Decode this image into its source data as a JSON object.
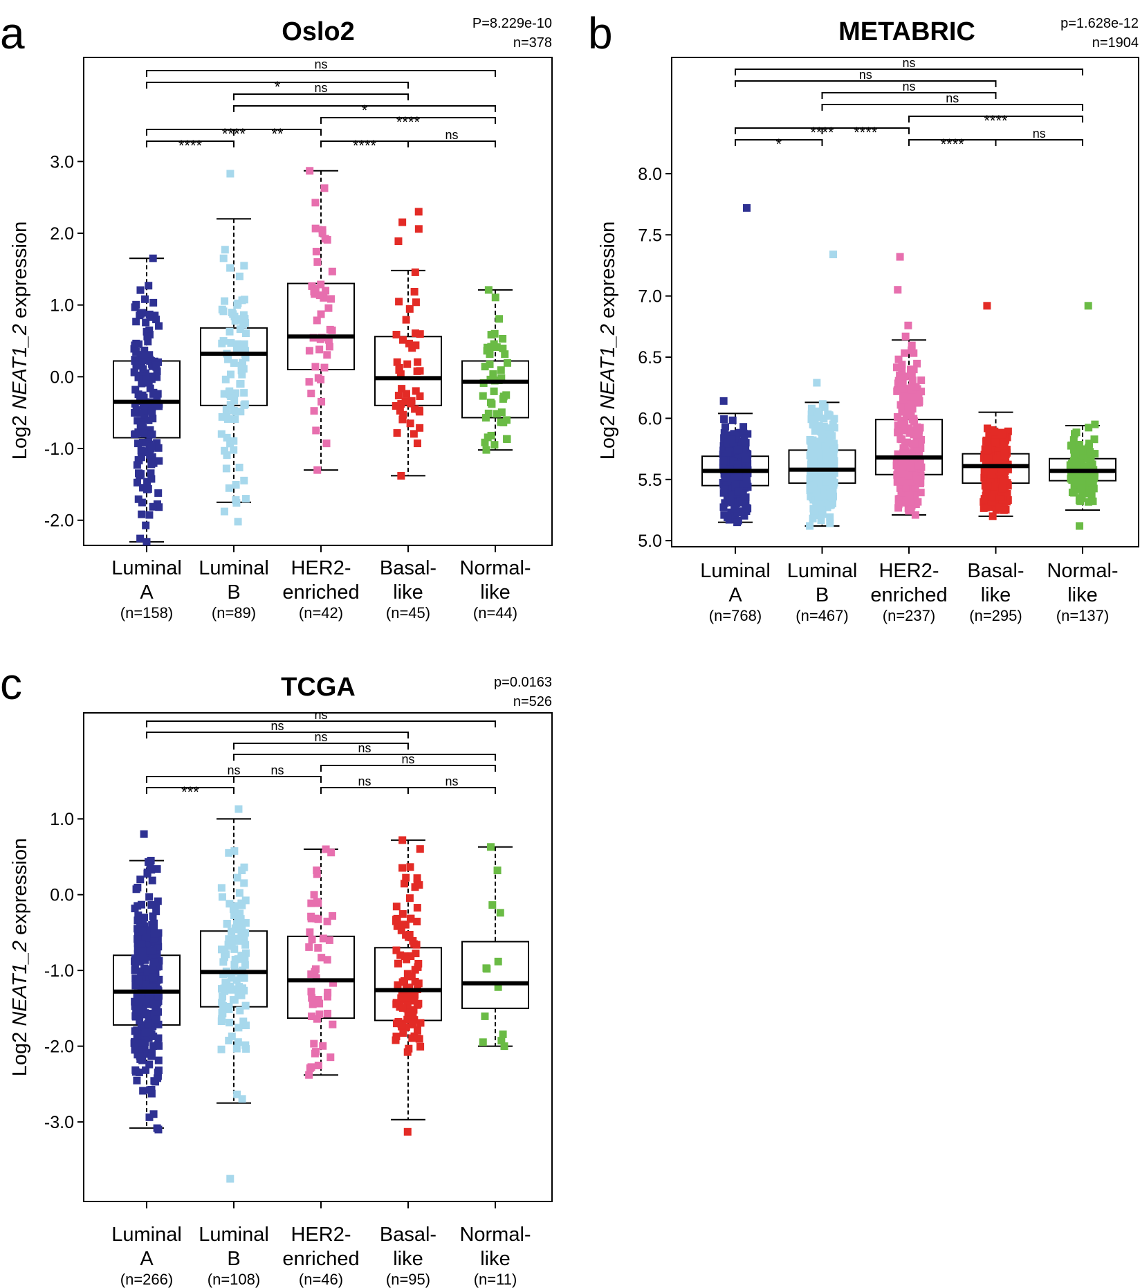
{
  "chart_data": [
    {
      "type": "boxplot",
      "panel_letter": "a",
      "title": "Oslo2",
      "stat_label": "P=8.229e-10",
      "n_label": "n=378",
      "ylabel": "Log2 NEAT1_2 expression",
      "ylabel_parts": [
        "Log2 ",
        "NEAT1_2",
        " expression"
      ],
      "ylim": [
        -2.35,
        4.45
      ],
      "yticks": [
        -2.0,
        -1.0,
        0.0,
        1.0,
        2.0,
        3.0
      ],
      "ytick_labels": [
        "-2.0",
        "-1.0",
        "0.0",
        "1.0",
        "2.0",
        "3.0"
      ],
      "groups": [
        {
          "name_line1": "Luminal",
          "name_line2": "A",
          "n": "(n=158)",
          "color": "#2e3192",
          "q1": -0.85,
          "median": -0.35,
          "q3": 0.22,
          "whisker_low": -2.3,
          "whisker_high": 1.65,
          "points": {
            "count": 158,
            "min": -2.3,
            "max": 1.65
          }
        },
        {
          "name_line1": "Luminal",
          "name_line2": "B",
          "n": "(n=89)",
          "color": "#a7d8ec",
          "q1": -0.4,
          "median": 0.32,
          "q3": 0.68,
          "whisker_low": -1.75,
          "whisker_high": 2.2,
          "points": {
            "count": 89,
            "min": -2.02,
            "max": 2.83
          }
        },
        {
          "name_line1": "HER2-",
          "name_line2": "enriched",
          "n": "(n=42)",
          "color": "#e76fae",
          "q1": 0.1,
          "median": 0.56,
          "q3": 1.3,
          "whisker_low": -1.3,
          "whisker_high": 2.87,
          "points": {
            "count": 42,
            "min": -1.3,
            "max": 2.87
          }
        },
        {
          "name_line1": "Basal-",
          "name_line2": "like",
          "n": "(n=45)",
          "color": "#e32b26",
          "q1": -0.4,
          "median": -0.02,
          "q3": 0.56,
          "whisker_low": -1.38,
          "whisker_high": 1.48,
          "points": {
            "count": 45,
            "min": -1.38,
            "max": 2.3
          }
        },
        {
          "name_line1": "Normal-",
          "name_line2": "like",
          "n": "(n=44)",
          "color": "#6abb45",
          "q1": -0.57,
          "median": -0.07,
          "q3": 0.22,
          "whisker_low": -1.02,
          "whisker_high": 1.21,
          "points": {
            "count": 44,
            "min": -1.02,
            "max": 1.21
          }
        }
      ],
      "comparisons": [
        {
          "from": 0,
          "to": 4,
          "label": "ns"
        },
        {
          "from": 0,
          "to": 3,
          "label": "*"
        },
        {
          "from": 1,
          "to": 3,
          "label": "ns"
        },
        {
          "from": 1,
          "to": 4,
          "label": "*"
        },
        {
          "from": 2,
          "to": 4,
          "label": "****"
        },
        {
          "from": 0,
          "to": 2,
          "label": "****"
        },
        {
          "from": 1,
          "to": 2,
          "label": "**"
        },
        {
          "from": 0,
          "to": 1,
          "label": "****"
        },
        {
          "from": 2,
          "to": 3,
          "label": "****"
        },
        {
          "from": 3,
          "to": 4,
          "label": "ns"
        }
      ],
      "legend": "none",
      "grid": false
    },
    {
      "type": "boxplot",
      "panel_letter": "b",
      "title": "METABRIC",
      "stat_label": "p=1.628e-12",
      "n_label": "n=1904",
      "ylabel": "Log2 NEAT1_2 expression",
      "ylabel_parts": [
        "Log2 ",
        "NEAT1_2",
        " expression"
      ],
      "ylim": [
        4.95,
        8.95
      ],
      "yticks": [
        5.0,
        5.5,
        6.0,
        6.5,
        7.0,
        7.5,
        8.0
      ],
      "ytick_labels": [
        "5.0",
        "5.5",
        "6.0",
        "6.5",
        "7.0",
        "7.5",
        "8.0"
      ],
      "groups": [
        {
          "name_line1": "Luminal",
          "name_line2": "A",
          "n": "(n=768)",
          "color": "#2e3192",
          "q1": 5.45,
          "median": 5.57,
          "q3": 5.69,
          "whisker_low": 5.15,
          "whisker_high": 6.04,
          "points": {
            "count": 768,
            "min": 5.15,
            "max": 7.72
          }
        },
        {
          "name_line1": "Luminal",
          "name_line2": "B",
          "n": "(n=467)",
          "color": "#a7d8ec",
          "q1": 5.47,
          "median": 5.58,
          "q3": 5.74,
          "whisker_low": 5.12,
          "whisker_high": 6.13,
          "points": {
            "count": 467,
            "min": 5.12,
            "max": 7.34
          }
        },
        {
          "name_line1": "HER2-",
          "name_line2": "enriched",
          "n": "(n=237)",
          "color": "#e76fae",
          "q1": 5.54,
          "median": 5.68,
          "q3": 5.99,
          "whisker_low": 5.21,
          "whisker_high": 6.64,
          "points": {
            "count": 237,
            "min": 5.21,
            "max": 7.32
          }
        },
        {
          "name_line1": "Basal-",
          "name_line2": "like",
          "n": "(n=295)",
          "color": "#e32b26",
          "q1": 5.47,
          "median": 5.61,
          "q3": 5.71,
          "whisker_low": 5.2,
          "whisker_high": 6.05,
          "points": {
            "count": 295,
            "min": 5.2,
            "max": 6.92
          }
        },
        {
          "name_line1": "Normal-",
          "name_line2": "like",
          "n": "(n=137)",
          "color": "#6abb45",
          "q1": 5.49,
          "median": 5.57,
          "q3": 5.67,
          "whisker_low": 5.25,
          "whisker_high": 5.94,
          "points": {
            "count": 137,
            "min": 5.12,
            "max": 6.92
          }
        }
      ],
      "comparisons": [
        {
          "from": 0,
          "to": 4,
          "label": "ns"
        },
        {
          "from": 0,
          "to": 3,
          "label": "ns"
        },
        {
          "from": 1,
          "to": 3,
          "label": "ns"
        },
        {
          "from": 1,
          "to": 4,
          "label": "ns"
        },
        {
          "from": 2,
          "to": 4,
          "label": "****"
        },
        {
          "from": 0,
          "to": 2,
          "label": "****"
        },
        {
          "from": 1,
          "to": 2,
          "label": "****"
        },
        {
          "from": 0,
          "to": 1,
          "label": "*"
        },
        {
          "from": 2,
          "to": 3,
          "label": "****"
        },
        {
          "from": 3,
          "to": 4,
          "label": "ns"
        }
      ],
      "legend": "none",
      "grid": false
    },
    {
      "type": "boxplot",
      "panel_letter": "c",
      "title": "TCGA",
      "stat_label": "p=0.0163",
      "n_label": "n=526",
      "ylabel": "Log2 NEAT1_2 expression",
      "ylabel_parts": [
        "Log2 ",
        "NEAT1_2",
        " expression"
      ],
      "ylim": [
        -4.05,
        2.4
      ],
      "yticks": [
        -3.0,
        -2.0,
        -1.0,
        0.0,
        1.0
      ],
      "ytick_labels": [
        "-3.0",
        "-2.0",
        "-1.0",
        "0.0",
        "1.0"
      ],
      "groups": [
        {
          "name_line1": "Luminal",
          "name_line2": "A",
          "n": "(n=266)",
          "color": "#2e3192",
          "q1": -1.72,
          "median": -1.28,
          "q3": -0.8,
          "whisker_low": -3.08,
          "whisker_high": 0.45,
          "points": {
            "count": 266,
            "min": -3.1,
            "max": 0.8
          }
        },
        {
          "name_line1": "Luminal",
          "name_line2": "B",
          "n": "(n=108)",
          "color": "#a7d8ec",
          "q1": -1.48,
          "median": -1.02,
          "q3": -0.48,
          "whisker_low": -2.75,
          "whisker_high": 1.0,
          "points": {
            "count": 108,
            "min": -3.75,
            "max": 1.13
          }
        },
        {
          "name_line1": "HER2-",
          "name_line2": "enriched",
          "n": "(n=46)",
          "color": "#e76fae",
          "q1": -1.63,
          "median": -1.13,
          "q3": -0.55,
          "whisker_low": -2.38,
          "whisker_high": 0.6,
          "points": {
            "count": 46,
            "min": -2.38,
            "max": 0.6
          }
        },
        {
          "name_line1": "Basal-",
          "name_line2": "like",
          "n": "(n=95)",
          "color": "#e32b26",
          "q1": -1.66,
          "median": -1.26,
          "q3": -0.7,
          "whisker_low": -2.97,
          "whisker_high": 0.72,
          "points": {
            "count": 95,
            "min": -3.13,
            "max": 0.72
          }
        },
        {
          "name_line1": "Normal-",
          "name_line2": "like",
          "n": "(n=11)",
          "color": "#6abb45",
          "q1": -1.5,
          "median": -1.17,
          "q3": -0.62,
          "whisker_low": -2.0,
          "whisker_high": 0.63,
          "points": {
            "count": 11,
            "min": -2.0,
            "max": 0.63
          }
        }
      ],
      "comparisons": [
        {
          "from": 0,
          "to": 4,
          "label": "ns"
        },
        {
          "from": 0,
          "to": 3,
          "label": "ns"
        },
        {
          "from": 1,
          "to": 3,
          "label": "ns"
        },
        {
          "from": 1,
          "to": 4,
          "label": "ns"
        },
        {
          "from": 2,
          "to": 4,
          "label": "ns"
        },
        {
          "from": 0,
          "to": 2,
          "label": "ns"
        },
        {
          "from": 1,
          "to": 2,
          "label": "ns"
        },
        {
          "from": 0,
          "to": 1,
          "label": "***"
        },
        {
          "from": 2,
          "to": 3,
          "label": "ns"
        },
        {
          "from": 3,
          "to": 4,
          "label": "ns"
        }
      ],
      "legend": "none",
      "grid": false
    }
  ]
}
